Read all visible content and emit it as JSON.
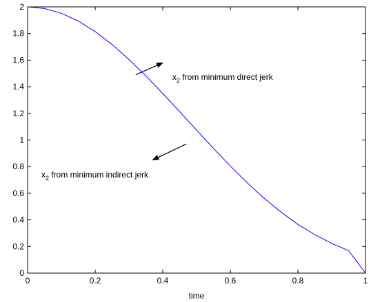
{
  "chart_data": {
    "type": "line",
    "title": "",
    "xlabel": "time",
    "ylabel": "",
    "xlim": [
      0,
      1
    ],
    "ylim": [
      0,
      2
    ],
    "xticks": [
      0,
      0.2,
      0.4,
      0.6,
      0.8,
      1
    ],
    "yticks": [
      0,
      0.2,
      0.4,
      0.6,
      0.8,
      1,
      1.2,
      1.4,
      1.6,
      1.8,
      2
    ],
    "xtick_labels": [
      "0",
      "0.2",
      "0.4",
      "0.6",
      "0.8",
      "1"
    ],
    "ytick_labels": [
      "0",
      "0.2",
      "0.4",
      "0.6",
      "0.8",
      "1",
      "1.2",
      "1.4",
      "1.6",
      "1.8",
      "2"
    ],
    "grid": false,
    "series": [
      {
        "color": "#0000ff",
        "x": [
          0,
          0.05,
          0.1,
          0.15,
          0.2,
          0.25,
          0.3,
          0.35,
          0.4,
          0.45,
          0.5,
          0.55,
          0.6,
          0.65,
          0.7,
          0.75,
          0.8,
          0.85,
          0.9,
          0.95,
          1
        ],
        "y": [
          2.0,
          1.9878,
          1.9519,
          1.8935,
          1.8145,
          1.7174,
          1.6052,
          1.4816,
          1.35,
          1.213,
          1.075,
          0.9378,
          0.8046,
          0.6786,
          0.5624,
          0.4583,
          0.366,
          0.2888,
          0.2232,
          0.1692,
          0.0
        ]
      }
    ],
    "annotations": [
      {
        "base": "x",
        "subscript": "2",
        "text": " from minimum direct jerk",
        "arrow_from": [
          0.32,
          1.49
        ],
        "arrow_to": [
          0.4,
          1.58
        ]
      },
      {
        "base": "x",
        "subscript": "2",
        "text": " from minimum indirect jerk",
        "arrow_from": [
          0.47,
          0.97
        ],
        "arrow_to": [
          0.37,
          0.85
        ]
      }
    ]
  }
}
